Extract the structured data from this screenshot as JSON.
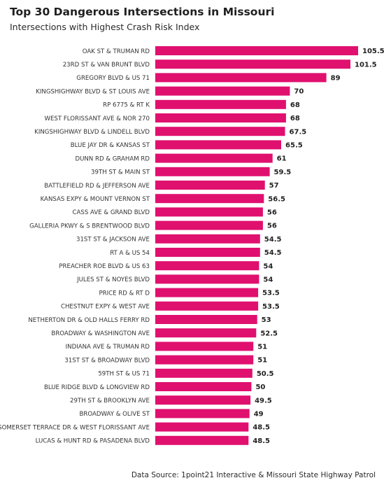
{
  "title": "Top 30 Dangerous Intersections in Missouri",
  "subtitle": "Intersections with Highest Crash Risk Index",
  "source": "Data Source: 1point21 Interactive & Missouri State Highway Patrol",
  "colors": {
    "bar": "#E0106F",
    "label": "#333333",
    "value": "#222222"
  },
  "chart_data": {
    "type": "bar",
    "orientation": "horizontal",
    "title": "Top 30 Dangerous Intersections in Missouri",
    "subtitle": "Intersections with Highest Crash Risk Index",
    "xlabel": "",
    "ylabel": "",
    "grid": false,
    "legend": "none",
    "xlim": [
      0,
      105.5
    ],
    "categories": [
      "OAK ST & TRUMAN RD",
      "23RD ST & VAN BRUNT BLVD",
      "GREGORY BLVD & US 71",
      "KINGSHIGHWAY BLVD & ST LOUIS AVE",
      "RP 6775 & RT K",
      "WEST FLORISSANT AVE & NOR 270",
      "KINGSHIGHWAY BLVD & LINDELL BLVD",
      "BLUE JAY DR & KANSAS ST",
      "DUNN RD & GRAHAM RD",
      "39TH ST & MAIN ST",
      "BATTLEFIELD RD & JEFFERSON AVE",
      "KANSAS EXPY & MOUNT VERNON ST",
      "CASS AVE & GRAND BLVD",
      "GALLERIA PKWY & S BRENTWOOD BLVD",
      "31ST ST & JACKSON AVE",
      "RT A & US 54",
      "PREACHER ROE BLVD & US 63",
      "JULES ST & NOYES BLVD",
      "PRICE RD & RT D",
      "CHESTNUT EXPY & WEST AVE",
      "NETHERTON DR & OLD HALLS FERRY RD",
      "BROADWAY & WASHINGTON AVE",
      "INDIANA AVE & TRUMAN RD",
      "31ST ST & BROADWAY BLVD",
      "59TH ST & US 71",
      "BLUE RIDGE BLVD & LONGVIEW RD",
      "29TH ST & BROOKLYN AVE",
      "BROADWAY & OLIVE ST",
      "SOMERSET TERRACE DR & WEST FLORISSANT AVE",
      "LUCAS & HUNT RD & PASADENA BLVD"
    ],
    "values": [
      105.5,
      101.5,
      89,
      70,
      68,
      68,
      67.5,
      65.5,
      61,
      59.5,
      57,
      56.5,
      56,
      56,
      54.5,
      54.5,
      54,
      54,
      53.5,
      53.5,
      53,
      52.5,
      51,
      51,
      50.5,
      50,
      49.5,
      49,
      48.5,
      48.5
    ],
    "value_labels": [
      "105.5",
      "101.5",
      "89",
      "70",
      "68",
      "68",
      "67.5",
      "65.5",
      "61",
      "59.5",
      "57",
      "56.5",
      "56",
      "56",
      "54.5",
      "54.5",
      "54",
      "54",
      "53.5",
      "53.5",
      "53",
      "52.5",
      "51",
      "51",
      "50.5",
      "50",
      "49.5",
      "49",
      "48.5",
      "48.5"
    ]
  }
}
